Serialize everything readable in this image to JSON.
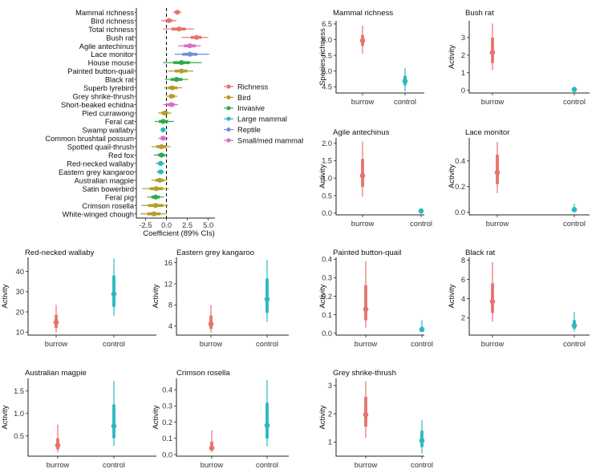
{
  "colors": {
    "Richness": "#e8736c",
    "Bird": "#b59d2b",
    "Invasive": "#2eaa4a",
    "Large mammal": "#2bb8c0",
    "Reptile": "#6f8fd6",
    "Small/med mammal": "#d86ec8",
    "burrow": "#e8736c",
    "control": "#2bb8c0",
    "axis": "#222222",
    "zero_line": "#000000"
  },
  "chart_data": [
    {
      "type": "forest",
      "title": "",
      "xlabel": "Coefficient (89% CIs)",
      "xlim": [
        -3.6,
        5.8
      ],
      "xticks": [
        -2.5,
        0.0,
        2.5,
        5.0
      ],
      "xtick_labels": [
        "-2.5",
        "0.0",
        "2.5",
        "5.0"
      ],
      "legend_position": "right",
      "legend": [
        {
          "label": "Richness",
          "group": "Richness"
        },
        {
          "label": "Bird",
          "group": "Bird"
        },
        {
          "label": "Invasive",
          "group": "Invasive"
        },
        {
          "label": "Large mammal",
          "group": "Large mammal"
        },
        {
          "label": "Reptile",
          "group": "Reptile"
        },
        {
          "label": "Small/med mammal",
          "group": "Small/med mammal"
        }
      ],
      "rows": [
        {
          "label": "Mammal richness",
          "group": "Richness",
          "est": 1.3,
          "inner": [
            1.0,
            1.6
          ],
          "outer": [
            0.8,
            1.8
          ]
        },
        {
          "label": "Bird richness",
          "group": "Richness",
          "est": 0.3,
          "inner": [
            -0.1,
            0.7
          ],
          "outer": [
            -0.6,
            1.2
          ]
        },
        {
          "label": "Total richness",
          "group": "Richness",
          "est": 1.5,
          "inner": [
            0.6,
            2.3
          ],
          "outer": [
            -0.4,
            3.3
          ]
        },
        {
          "label": "Bush rat",
          "group": "Richness",
          "est": 3.6,
          "inner": [
            2.9,
            4.2
          ],
          "outer": [
            1.8,
            5.0
          ]
        },
        {
          "label": "Agile antechinus",
          "group": "Small/med mammal",
          "est": 2.8,
          "inner": [
            2.1,
            3.5
          ],
          "outer": [
            1.4,
            4.1
          ]
        },
        {
          "label": "Lace monitor",
          "group": "Reptile",
          "est": 2.8,
          "inner": [
            1.9,
            3.7
          ],
          "outer": [
            1.0,
            5.1
          ]
        },
        {
          "label": "House mouse",
          "group": "Invasive",
          "est": 1.8,
          "inner": [
            0.8,
            2.8
          ],
          "outer": [
            -0.4,
            4.2
          ]
        },
        {
          "label": "Painted button-quail",
          "group": "Bird",
          "est": 1.8,
          "inner": [
            1.0,
            2.5
          ],
          "outer": [
            0.2,
            3.2
          ]
        },
        {
          "label": "Black rat",
          "group": "Invasive",
          "est": 1.2,
          "inner": [
            0.5,
            1.9
          ],
          "outer": [
            -0.2,
            2.6
          ]
        },
        {
          "label": "Superb lyrebird",
          "group": "Bird",
          "est": 0.7,
          "inner": [
            0.2,
            1.3
          ],
          "outer": [
            -0.3,
            1.9
          ]
        },
        {
          "label": "Grey shrike-thrush",
          "group": "Bird",
          "est": 0.6,
          "inner": [
            0.3,
            1.0
          ],
          "outer": [
            0.0,
            1.3
          ]
        },
        {
          "label": "Short-beaked echidna",
          "group": "Small/med mammal",
          "est": 0.6,
          "inner": [
            0.1,
            1.0
          ],
          "outer": [
            -0.4,
            1.4
          ]
        },
        {
          "label": "Pied currawong",
          "group": "Bird",
          "est": -0.2,
          "inner": [
            -0.6,
            0.2
          ],
          "outer": [
            -1.0,
            0.6
          ]
        },
        {
          "label": "Feral cat",
          "group": "Invasive",
          "est": -0.4,
          "inner": [
            -0.9,
            0.2
          ],
          "outer": [
            -1.4,
            0.9
          ]
        },
        {
          "label": "Swamp wallaby",
          "group": "Large mammal",
          "est": -0.4,
          "inner": [
            -0.6,
            -0.2
          ],
          "outer": [
            -0.7,
            -0.1
          ]
        },
        {
          "label": "Common brushtail possum",
          "group": "Small/med mammal",
          "est": -0.4,
          "inner": [
            -0.7,
            -0.1
          ],
          "outer": [
            -1.0,
            0.2
          ]
        },
        {
          "label": "Spotted quail-thrush",
          "group": "Bird",
          "est": -0.6,
          "inner": [
            -1.2,
            0.0
          ],
          "outer": [
            -1.8,
            0.5
          ]
        },
        {
          "label": "Red fox",
          "group": "Invasive",
          "est": -0.6,
          "inner": [
            -1.0,
            -0.2
          ],
          "outer": [
            -1.5,
            0.1
          ]
        },
        {
          "label": "Red-necked wallaby",
          "group": "Large mammal",
          "est": -0.7,
          "inner": [
            -1.0,
            -0.4
          ],
          "outer": [
            -1.3,
            -0.2
          ]
        },
        {
          "label": "Eastern grey kangaroo",
          "group": "Large mammal",
          "est": -0.7,
          "inner": [
            -1.0,
            -0.4
          ],
          "outer": [
            -1.2,
            -0.3
          ]
        },
        {
          "label": "Australian magpie",
          "group": "Bird",
          "est": -0.8,
          "inner": [
            -1.3,
            -0.3
          ],
          "outer": [
            -1.8,
            0.1
          ]
        },
        {
          "label": "Satin bowerbird",
          "group": "Bird",
          "est": -1.2,
          "inner": [
            -2.0,
            -0.4
          ],
          "outer": [
            -2.9,
            0.3
          ]
        },
        {
          "label": "Feral pig",
          "group": "Invasive",
          "est": -1.3,
          "inner": [
            -1.8,
            -0.8
          ],
          "outer": [
            -2.3,
            -0.3
          ]
        },
        {
          "label": "Crimson rosella",
          "group": "Bird",
          "est": -1.3,
          "inner": [
            -2.2,
            -0.4
          ],
          "outer": [
            -3.0,
            0.2
          ]
        },
        {
          "label": "White-winged chough",
          "group": "Bird",
          "est": -1.5,
          "inner": [
            -2.3,
            -0.7
          ],
          "outer": [
            -3.1,
            0.0
          ]
        }
      ]
    },
    {
      "type": "pointrange",
      "title": "Mammal richness",
      "ylabel": "Species richness",
      "categories": [
        "burrow",
        "control"
      ],
      "ylim": [
        4.3,
        6.6
      ],
      "yticks": [
        4.5,
        5.0,
        5.5,
        6.0,
        6.5
      ],
      "ytick_labels": [
        "4.5",
        "5.0",
        "5.5",
        "6.0",
        "6.5"
      ],
      "points": [
        {
          "category": "burrow",
          "est": 5.97,
          "inner": [
            5.8,
            6.15
          ],
          "outer": [
            5.55,
            6.45
          ]
        },
        {
          "category": "control",
          "est": 4.68,
          "inner": [
            4.55,
            4.85
          ],
          "outer": [
            4.35,
            5.1
          ]
        }
      ]
    },
    {
      "type": "pointrange",
      "title": "Bush rat",
      "ylabel": "Activity",
      "categories": [
        "burrow",
        "control"
      ],
      "ylim": [
        -0.15,
        3.95
      ],
      "yticks": [
        0,
        1,
        2,
        3
      ],
      "ytick_labels": [
        "0",
        "1",
        "2",
        "3"
      ],
      "points": [
        {
          "category": "burrow",
          "est": 2.15,
          "inner": [
            1.55,
            3.0
          ],
          "outer": [
            1.15,
            3.8
          ]
        },
        {
          "category": "control",
          "est": 0.05,
          "inner": [
            0.03,
            0.07
          ],
          "outer": [
            0.02,
            0.09
          ]
        }
      ]
    },
    {
      "type": "pointrange",
      "title": "Agile antechinus",
      "ylabel": "Activity",
      "categories": [
        "burrow",
        "control"
      ],
      "ylim": [
        -0.05,
        2.15
      ],
      "yticks": [
        0.0,
        0.5,
        1.0,
        1.5,
        2.0
      ],
      "ytick_labels": [
        "0.0",
        "0.5",
        "1.0",
        "1.5",
        "2.0"
      ],
      "points": [
        {
          "category": "burrow",
          "est": 1.07,
          "inner": [
            0.75,
            1.55
          ],
          "outer": [
            0.47,
            2.05
          ]
        },
        {
          "category": "control",
          "est": 0.06,
          "inner": [
            0.04,
            0.09
          ],
          "outer": [
            0.02,
            0.13
          ]
        }
      ]
    },
    {
      "type": "pointrange",
      "title": "Lace monitor",
      "ylabel": "Activity",
      "categories": [
        "burrow",
        "control"
      ],
      "ylim": [
        -0.02,
        0.58
      ],
      "yticks": [
        0.0,
        0.2,
        0.4
      ],
      "ytick_labels": [
        "0.0",
        "0.2",
        "0.4"
      ],
      "points": [
        {
          "category": "burrow",
          "est": 0.31,
          "inner": [
            0.22,
            0.45
          ],
          "outer": [
            0.15,
            0.55
          ]
        },
        {
          "category": "control",
          "est": 0.02,
          "inner": [
            0.01,
            0.04
          ],
          "outer": [
            0.005,
            0.07
          ]
        }
      ]
    },
    {
      "type": "pointrange",
      "title": "Red-necked wallaby",
      "ylabel": "Activity",
      "categories": [
        "burrow",
        "control"
      ],
      "ylim": [
        8.5,
        47
      ],
      "yticks": [
        10,
        20,
        30,
        40
      ],
      "ytick_labels": [
        "10",
        "20",
        "30",
        "40"
      ],
      "points": [
        {
          "category": "burrow",
          "est": 14.8,
          "inner": [
            12.0,
            18.5
          ],
          "outer": [
            9.8,
            23.5
          ]
        },
        {
          "category": "control",
          "est": 28.8,
          "inner": [
            22.5,
            38.0
          ],
          "outer": [
            18.0,
            46.5
          ]
        }
      ]
    },
    {
      "type": "pointrange",
      "title": "Eastern grey kangaroo",
      "ylabel": "Activity",
      "categories": [
        "burrow",
        "control"
      ],
      "ylim": [
        2.3,
        17
      ],
      "yticks": [
        4,
        8,
        12,
        16
      ],
      "ytick_labels": [
        "4",
        "8",
        "12",
        "16"
      ],
      "points": [
        {
          "category": "burrow",
          "est": 4.4,
          "inner": [
            3.5,
            6.0
          ],
          "outer": [
            2.8,
            8.0
          ]
        },
        {
          "category": "control",
          "est": 9.1,
          "inner": [
            6.5,
            13.0
          ],
          "outer": [
            4.8,
            16.5
          ]
        }
      ]
    },
    {
      "type": "pointrange",
      "title": "Painted button-quail",
      "ylabel": "Activity",
      "categories": [
        "burrow",
        "control"
      ],
      "ylim": [
        -0.01,
        0.41
      ],
      "yticks": [
        0.0,
        0.1,
        0.2,
        0.3,
        0.4
      ],
      "ytick_labels": [
        "0.0",
        "0.1",
        "0.2",
        "0.3",
        "0.4"
      ],
      "points": [
        {
          "category": "burrow",
          "est": 0.13,
          "inner": [
            0.07,
            0.26
          ],
          "outer": [
            0.03,
            0.39
          ]
        },
        {
          "category": "control",
          "est": 0.02,
          "inner": [
            0.013,
            0.035
          ],
          "outer": [
            0.007,
            0.07
          ]
        }
      ]
    },
    {
      "type": "pointrange",
      "title": "Black rat",
      "ylabel": "Activity",
      "categories": [
        "burrow",
        "control"
      ],
      "ylim": [
        0.2,
        8.3
      ],
      "yticks": [
        2,
        4,
        6,
        8
      ],
      "ytick_labels": [
        "2",
        "4",
        "6",
        "8"
      ],
      "points": [
        {
          "category": "burrow",
          "est": 3.7,
          "inner": [
            2.5,
            5.6
          ],
          "outer": [
            1.6,
            7.8
          ]
        },
        {
          "category": "control",
          "est": 1.2,
          "inner": [
            0.85,
            1.75
          ],
          "outer": [
            0.55,
            2.6
          ]
        }
      ]
    },
    {
      "type": "pointrange",
      "title": "Australian magpie",
      "ylabel": "Activity",
      "categories": [
        "burrow",
        "control"
      ],
      "ylim": [
        0.05,
        1.78
      ],
      "yticks": [
        0.5,
        1.0,
        1.5
      ],
      "ytick_labels": [
        "0.5",
        "1.0",
        "1.5"
      ],
      "points": [
        {
          "category": "burrow",
          "est": 0.29,
          "inner": [
            0.2,
            0.45
          ],
          "outer": [
            0.13,
            0.75
          ]
        },
        {
          "category": "control",
          "est": 0.72,
          "inner": [
            0.45,
            1.2
          ],
          "outer": [
            0.28,
            1.72
          ]
        }
      ]
    },
    {
      "type": "pointrange",
      "title": "Crimson rosella",
      "ylabel": "Activity",
      "categories": [
        "burrow",
        "control"
      ],
      "ylim": [
        -0.01,
        0.47
      ],
      "yticks": [
        0.0,
        0.1,
        0.2,
        0.3,
        0.4
      ],
      "ytick_labels": [
        "0.0",
        "0.1",
        "0.2",
        "0.3",
        "0.4"
      ],
      "points": [
        {
          "category": "burrow",
          "est": 0.04,
          "inner": [
            0.025,
            0.08
          ],
          "outer": [
            0.015,
            0.15
          ]
        },
        {
          "category": "control",
          "est": 0.18,
          "inner": [
            0.1,
            0.32
          ],
          "outer": [
            0.05,
            0.46
          ]
        }
      ]
    },
    {
      "type": "pointrange",
      "title": "Grey shrike-thrush",
      "ylabel": "Activity",
      "categories": [
        "burrow",
        "control"
      ],
      "ylim": [
        0.5,
        3.25
      ],
      "yticks": [
        1,
        2,
        3
      ],
      "ytick_labels": [
        "1",
        "2",
        "3"
      ],
      "points": [
        {
          "category": "burrow",
          "est": 1.97,
          "inner": [
            1.55,
            2.6
          ],
          "outer": [
            1.15,
            3.15
          ]
        },
        {
          "category": "control",
          "est": 1.05,
          "inner": [
            0.82,
            1.4
          ],
          "outer": [
            0.6,
            1.78
          ]
        }
      ]
    }
  ]
}
